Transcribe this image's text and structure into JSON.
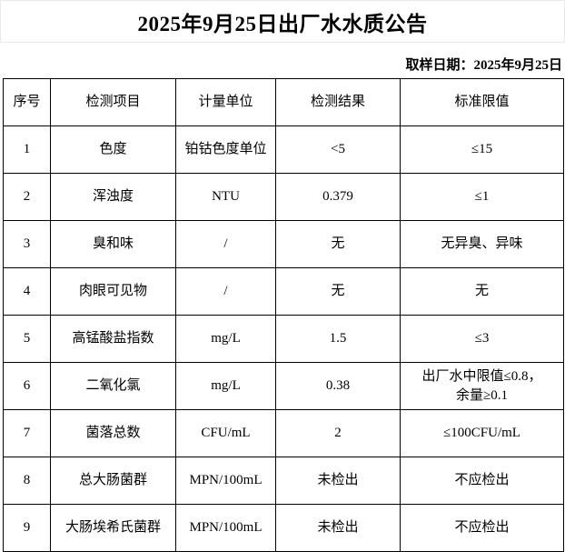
{
  "page": {
    "title": "2025年9月25日出厂水水质公告",
    "sample_date": "取样日期：2025年9月25日"
  },
  "table": {
    "headers": [
      "序号",
      "检测项目",
      "计量单位",
      "检测结果",
      "标准限值"
    ],
    "rows": [
      [
        "1",
        "色度",
        "铂钴色度单位",
        "<5",
        "≤15"
      ],
      [
        "2",
        "浑浊度",
        "NTU",
        "0.379",
        "≤1"
      ],
      [
        "3",
        "臭和味",
        "/",
        "无",
        "无异臭、异味"
      ],
      [
        "4",
        "肉眼可见物",
        "/",
        "无",
        "无"
      ],
      [
        "5",
        "高锰酸盐指数",
        "mg/L",
        "1.5",
        "≤3"
      ],
      [
        "6",
        "二氧化氯",
        "mg/L",
        "0.38",
        "出厂水中限值≤0.8，\n余量≥0.1"
      ],
      [
        "7",
        "菌落总数",
        "CFU/mL",
        "2",
        "≤100CFU/mL"
      ],
      [
        "8",
        "总大肠菌群",
        "MPN/100mL",
        "未检出",
        "不应检出"
      ],
      [
        "9",
        "大肠埃希氏菌群",
        "MPN/100mL",
        "未检出",
        "不应检出"
      ]
    ]
  }
}
